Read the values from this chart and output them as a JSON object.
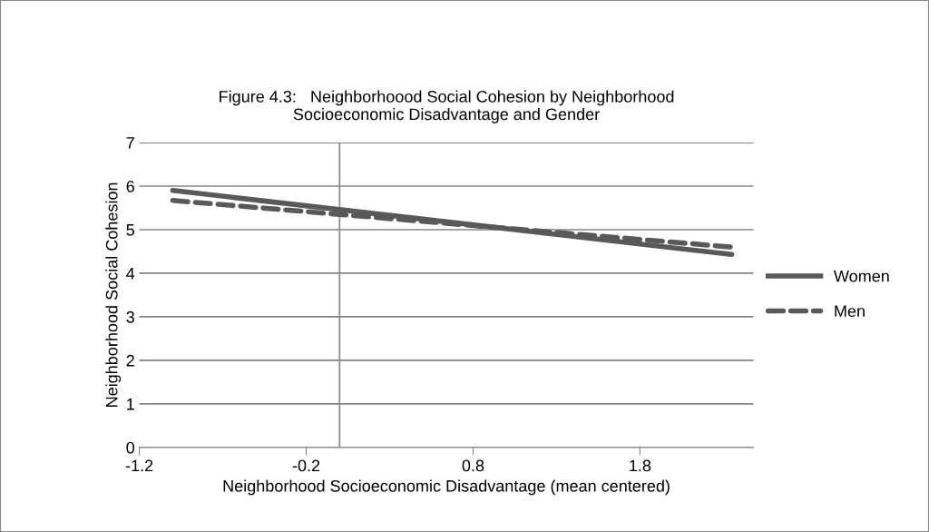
{
  "chart_data": {
    "type": "line",
    "title": "Figure 4.3:   Neighborhoood Social Cohesion by Neighborhood\nSocioeconomic Disadvantage and Gender",
    "xlabel": "Neighborhood Socioeconomic Disadvantage (mean centered)",
    "ylabel": "Neighborhood Social Cohesion",
    "x": [
      -1.0,
      2.35
    ],
    "series": [
      {
        "name": "Women",
        "color": "#595959",
        "values": [
          5.9,
          4.43
        ],
        "line_style": "solid"
      },
      {
        "name": "Men",
        "color": "#595959",
        "values": [
          5.67,
          4.6
        ],
        "line_style": "dashed"
      }
    ],
    "xlim": [
      -1.2,
      2.48
    ],
    "xticks": [
      -1.2,
      -0.2,
      0.8,
      1.8
    ],
    "ylim": [
      0,
      7
    ],
    "yticks": [
      0,
      1,
      2,
      3,
      4,
      5,
      6,
      7
    ],
    "ref_lines": [
      {
        "axis": "x",
        "value": 0,
        "color": "#868686",
        "line_style": "solid"
      }
    ],
    "grid": "y",
    "legend": "right",
    "marker": "none"
  }
}
